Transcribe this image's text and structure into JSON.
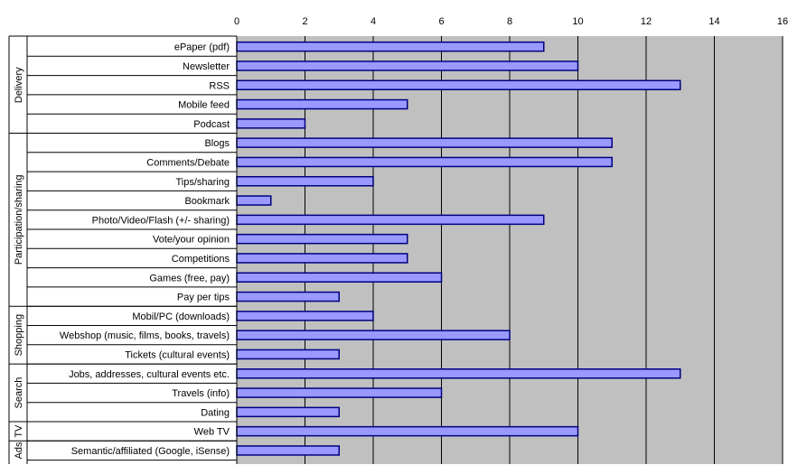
{
  "chart_data": {
    "type": "bar",
    "orientation": "horizontal",
    "xlim": [
      0,
      16
    ],
    "x_ticks": [
      "0",
      "2",
      "4",
      "6",
      "8",
      "10",
      "12",
      "14",
      "16"
    ],
    "grid": true,
    "legend": "none",
    "colors": {
      "bar": "#9999ff",
      "bar_border": "#000080",
      "plot_bg": "#c0c0c0",
      "gridline": "#000000"
    },
    "groups": [
      {
        "name": "Delivery",
        "start": 0,
        "count": 5
      },
      {
        "name": "Participation/sharing",
        "start": 5,
        "count": 9
      },
      {
        "name": "Shopping",
        "start": 14,
        "count": 3
      },
      {
        "name": "Search",
        "start": 17,
        "count": 3
      },
      {
        "name": "TV",
        "start": 20,
        "count": 1
      },
      {
        "name": "Ads",
        "start": 21,
        "count": 1
      }
    ],
    "categories": [
      "ePaper (pdf)",
      "Newsletter",
      "RSS",
      "Mobile feed",
      "Podcast",
      "Blogs",
      "Comments/Debate",
      "Tips/sharing",
      "Bookmark",
      "Photo/Video/Flash (+/- sharing)",
      "Vote/your opinion",
      "Competitions",
      "Games (free, pay)",
      "Pay per tips",
      "Mobil/PC (downloads)",
      "Webshop (music, films, books, travels)",
      "Tickets (cultural events)",
      "Jobs, addresses, cultural events etc.",
      "Travels (info)",
      "Dating",
      "Web TV",
      "Semantic/affiliated (Google, iSense)"
    ],
    "values": [
      9,
      10,
      13,
      5,
      2,
      11,
      11,
      4,
      1,
      9,
      5,
      5,
      6,
      3,
      4,
      8,
      3,
      13,
      6,
      3,
      10,
      3
    ]
  }
}
